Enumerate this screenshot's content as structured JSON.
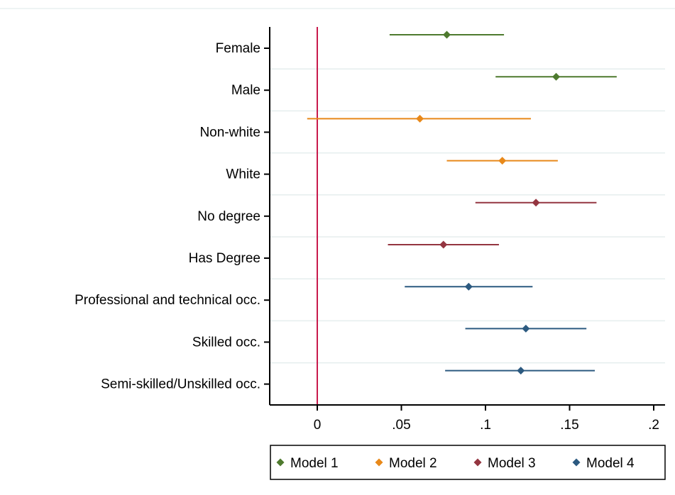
{
  "chart_data": {
    "type": "scatter",
    "subtype": "coefficient-plot",
    "title": "",
    "xlabel": "",
    "ylabel": "",
    "xlim": [
      -0.028,
      0.204
    ],
    "x_ticks": [
      {
        "value": 0,
        "label": "0"
      },
      {
        "value": 0.05,
        "label": ".05"
      },
      {
        "value": 0.1,
        "label": ".1"
      },
      {
        "value": 0.15,
        "label": ".15"
      },
      {
        "value": 0.2,
        "label": ".2"
      }
    ],
    "reference_line": {
      "x": 0,
      "color": "#c8194b"
    },
    "grid": "horizontal",
    "legend_position": "bottom",
    "categories": [
      "Female",
      "Male",
      "Non-white",
      "White",
      "No degree",
      "Has Degree",
      "Professional and technical occ.",
      "Skilled occ.",
      "Semi-skilled/Unskilled occ."
    ],
    "series": [
      {
        "name": "Model 1",
        "color": "#4e7a2e",
        "points": [
          {
            "category": "Female",
            "estimate": 0.077,
            "ci_low": 0.043,
            "ci_high": 0.111
          },
          {
            "category": "Male",
            "estimate": 0.142,
            "ci_low": 0.106,
            "ci_high": 0.178
          }
        ]
      },
      {
        "name": "Model 2",
        "color": "#e8891a",
        "points": [
          {
            "category": "Non-white",
            "estimate": 0.061,
            "ci_low": -0.006,
            "ci_high": 0.127
          },
          {
            "category": "White",
            "estimate": 0.11,
            "ci_low": 0.077,
            "ci_high": 0.143
          }
        ]
      },
      {
        "name": "Model 3",
        "color": "#943540",
        "points": [
          {
            "category": "No degree",
            "estimate": 0.13,
            "ci_low": 0.094,
            "ci_high": 0.166
          },
          {
            "category": "Has Degree",
            "estimate": 0.075,
            "ci_low": 0.042,
            "ci_high": 0.108
          }
        ]
      },
      {
        "name": "Model 4",
        "color": "#2c5a80",
        "points": [
          {
            "category": "Professional and technical occ.",
            "estimate": 0.09,
            "ci_low": 0.052,
            "ci_high": 0.128
          },
          {
            "category": "Skilled occ.",
            "estimate": 0.124,
            "ci_low": 0.088,
            "ci_high": 0.16
          },
          {
            "category": "Semi-skilled/Unskilled occ.",
            "estimate": 0.121,
            "ci_low": 0.076,
            "ci_high": 0.165
          }
        ]
      }
    ]
  }
}
